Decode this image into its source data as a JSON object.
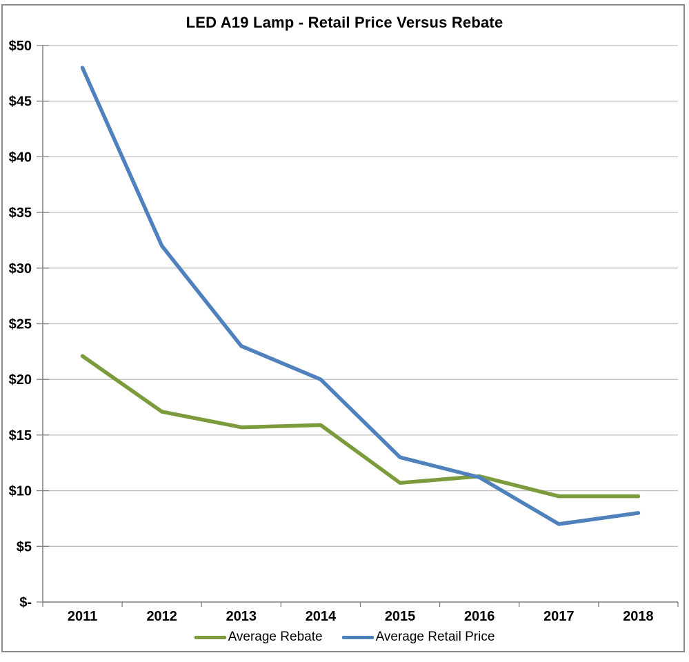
{
  "chart_data": {
    "type": "line",
    "title": "LED A19 Lamp - Retail Price Versus Rebate",
    "categories": [
      "2011",
      "2012",
      "2013",
      "2014",
      "2015",
      "2016",
      "2017",
      "2018"
    ],
    "series": [
      {
        "name": "Average Rebate",
        "color": "#7C9B3D",
        "values": [
          22.1,
          17.1,
          15.7,
          15.9,
          10.7,
          11.3,
          9.5,
          9.5
        ]
      },
      {
        "name": "Average Retail Price",
        "color": "#4F81BD",
        "values": [
          48,
          32,
          23,
          20,
          13,
          11.2,
          7,
          8
        ]
      }
    ],
    "xlabel": "",
    "ylabel": "",
    "ylim": [
      0,
      50
    ],
    "y_tick_step": 5,
    "y_tick_labels": [
      "$-",
      "$5",
      "$10",
      "$15",
      "$20",
      "$25",
      "$30",
      "$35",
      "$40",
      "$45",
      "$50"
    ],
    "grid": "horizontal",
    "legend_position": "bottom",
    "gridline_color": "#BFBFBF",
    "axis_color": "#808080",
    "text_color": "#000000"
  }
}
